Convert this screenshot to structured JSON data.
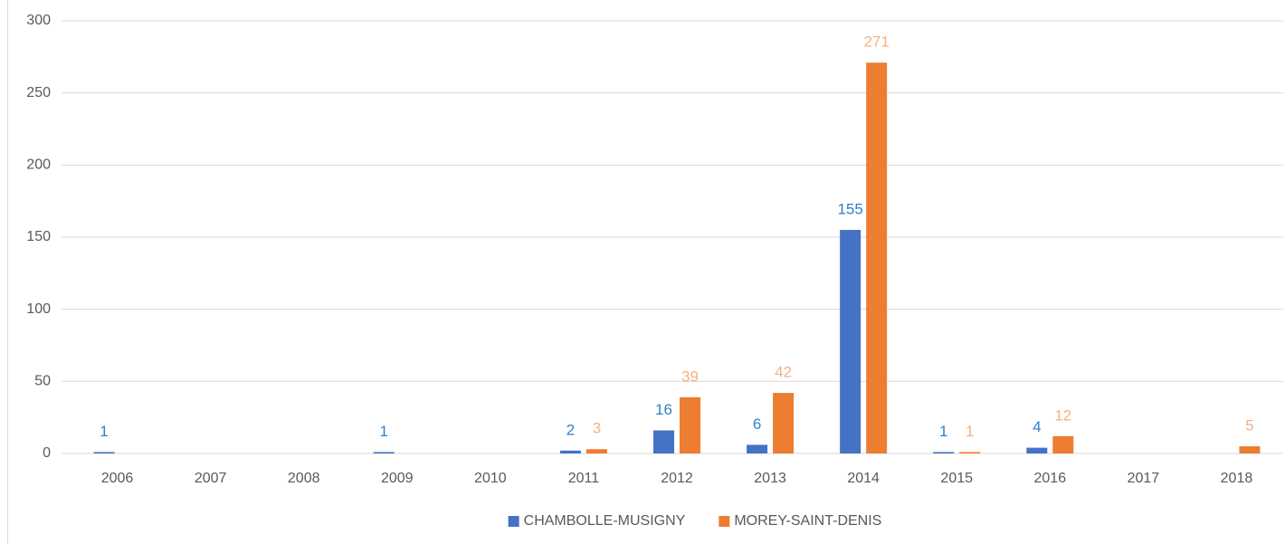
{
  "chart_data": {
    "type": "bar",
    "categories": [
      "2006",
      "2007",
      "2008",
      "2009",
      "2010",
      "2011",
      "2012",
      "2013",
      "2014",
      "2015",
      "2016",
      "2017",
      "2018"
    ],
    "series": [
      {
        "name": "CHAMBOLLE-MUSIGNY",
        "color": "#4472c4",
        "label_color": "#2f80c8",
        "values": [
          1,
          null,
          null,
          1,
          null,
          2,
          16,
          6,
          155,
          1,
          4,
          null,
          null
        ]
      },
      {
        "name": "MOREY-SAINT-DENIS",
        "color": "#ed7d31",
        "label_color": "#f4b183",
        "values": [
          null,
          null,
          null,
          null,
          null,
          3,
          39,
          42,
          271,
          1,
          12,
          null,
          5
        ]
      }
    ],
    "ylim": [
      0,
      300
    ],
    "yticks": [
      0,
      50,
      100,
      150,
      200,
      250,
      300
    ],
    "grid": true,
    "legend": "bottom"
  }
}
